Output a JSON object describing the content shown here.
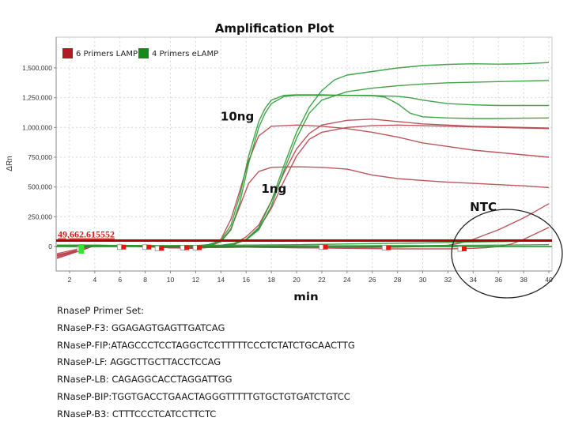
{
  "chart_data": {
    "type": "line",
    "title": "Amplification Plot",
    "xlabel": "min",
    "ylabel": "ΔRn",
    "xlim": [
      1,
      40
    ],
    "ylim": [
      -200000,
      1650000
    ],
    "x_ticks": [
      2,
      4,
      6,
      8,
      10,
      12,
      14,
      16,
      18,
      20,
      22,
      24,
      26,
      28,
      30,
      32,
      34,
      36,
      38,
      40
    ],
    "x_tick_labels": [
      "2",
      "4",
      "6",
      "8",
      "10",
      "12",
      "14",
      "16",
      "18",
      "20",
      "22",
      "24",
      "26",
      "28",
      "30",
      "32",
      "34",
      "36",
      "38",
      "40"
    ],
    "y_ticks": [
      0,
      250000,
      500000,
      750000,
      1000000,
      1250000,
      1500000
    ],
    "y_tick_labels": [
      "0",
      "250,000",
      "500,000",
      "750,000",
      "1,000,000",
      "1,250,000",
      "1,500,000"
    ],
    "grid": true,
    "legend": {
      "placement": "top-left",
      "entries": [
        {
          "label": "6 Primers LAMP",
          "color": "#b01c24"
        },
        {
          "label": "4 Primers eLAMP",
          "color": "#138a1a"
        }
      ]
    },
    "threshold": {
      "value": 49662.615552,
      "label": "49,662.615552",
      "color": "#b00000"
    },
    "annotations": [
      {
        "text": "10ng",
        "x": 15.3,
        "y": 1060000
      },
      {
        "text": "1ng",
        "x": 18.2,
        "y": 450000
      },
      {
        "text": "NTC",
        "x": 34.8,
        "y": 300000
      }
    ],
    "series": [
      {
        "name": "6 Primers LAMP 10ng a",
        "group": "6 Primers LAMP",
        "color": "#b8424a",
        "x": [
          1,
          3,
          4,
          6,
          8,
          10,
          12,
          13,
          14,
          14.8,
          15.5,
          16.2,
          17,
          18,
          20,
          22,
          24,
          26,
          28,
          30,
          32,
          34,
          36,
          38,
          40
        ],
        "y": [
          -70000,
          -30000,
          10000,
          5000,
          0,
          -10000,
          -15000,
          0,
          60000,
          230000,
          470000,
          720000,
          930000,
          1010000,
          1020000,
          1010000,
          990000,
          960000,
          920000,
          870000,
          840000,
          810000,
          790000,
          770000,
          750000
        ]
      },
      {
        "name": "6 Primers LAMP 10ng b",
        "group": "6 Primers LAMP",
        "color": "#b8424a",
        "x": [
          1,
          3,
          4,
          6,
          8,
          10,
          12,
          13,
          14,
          14.8,
          15.5,
          16.2,
          17,
          18,
          20,
          22,
          24,
          26,
          28,
          30,
          32,
          34,
          36,
          38,
          40
        ],
        "y": [
          -90000,
          -30000,
          10000,
          5000,
          0,
          -10000,
          -15000,
          0,
          40000,
          150000,
          340000,
          530000,
          630000,
          665000,
          670000,
          665000,
          650000,
          600000,
          570000,
          555000,
          540000,
          530000,
          520000,
          510000,
          495000
        ]
      },
      {
        "name": "6 Primers LAMP 1ng a",
        "group": "6 Primers LAMP",
        "color": "#b8424a",
        "x": [
          1,
          3,
          4,
          6,
          8,
          10,
          12,
          14,
          15,
          16,
          17,
          18,
          19,
          20,
          21,
          22,
          24,
          26,
          28,
          30,
          32,
          34,
          36,
          38,
          40
        ],
        "y": [
          -80000,
          -30000,
          10000,
          5000,
          0,
          -10000,
          -15000,
          0,
          20000,
          80000,
          180000,
          380000,
          620000,
          820000,
          950000,
          1020000,
          1060000,
          1070000,
          1050000,
          1030000,
          1020000,
          1010000,
          1005000,
          1000000,
          995000
        ]
      },
      {
        "name": "6 Primers LAMP 1ng b",
        "group": "6 Primers LAMP",
        "color": "#b8424a",
        "x": [
          1,
          3,
          4,
          6,
          8,
          10,
          12,
          14,
          15,
          16,
          17,
          18,
          19,
          20,
          21,
          22,
          24,
          26,
          28,
          30,
          32,
          34,
          36,
          38,
          40
        ],
        "y": [
          -100000,
          -30000,
          10000,
          5000,
          0,
          -10000,
          -15000,
          0,
          15000,
          60000,
          150000,
          320000,
          550000,
          760000,
          900000,
          960000,
          1000000,
          1015000,
          1020000,
          1015000,
          1010000,
          1005000,
          1000000,
          995000,
          990000
        ]
      },
      {
        "name": "6 Primers LAMP NTC a",
        "group": "6 Primers LAMP",
        "color": "#b8424a",
        "x": [
          1,
          4,
          8,
          12,
          16,
          20,
          24,
          28,
          30,
          32,
          33,
          34,
          35,
          36,
          37,
          38,
          39,
          40
        ],
        "y": [
          -60000,
          10000,
          0,
          -10000,
          -5000,
          -10000,
          -10000,
          -5000,
          0,
          10000,
          30000,
          60000,
          100000,
          140000,
          190000,
          240000,
          300000,
          360000
        ]
      },
      {
        "name": "6 Primers LAMP NTC b",
        "group": "6 Primers LAMP",
        "color": "#b8424a",
        "x": [
          1,
          4,
          8,
          12,
          16,
          20,
          24,
          28,
          32,
          34,
          35,
          36,
          37,
          38,
          39,
          40
        ],
        "y": [
          -75000,
          10000,
          0,
          -10000,
          -5000,
          -10000,
          -15000,
          -20000,
          -20000,
          -15000,
          -10000,
          0,
          20000,
          60000,
          110000,
          160000
        ]
      },
      {
        "name": "4 Primers eLAMP 10ng a",
        "group": "4 Primers eLAMP",
        "color": "#2e9a36",
        "x": [
          1,
          3,
          4,
          6,
          8,
          10,
          12,
          13,
          14,
          14.8,
          15.5,
          16.2,
          17,
          17.5,
          18,
          19,
          20,
          22,
          24,
          26,
          27,
          28,
          29,
          30,
          32,
          34,
          36,
          38,
          40
        ],
        "y": [
          10000,
          10000,
          10000,
          8000,
          5000,
          5000,
          5000,
          15000,
          50000,
          180000,
          430000,
          760000,
          1050000,
          1160000,
          1230000,
          1270000,
          1275000,
          1275000,
          1270000,
          1268000,
          1255000,
          1200000,
          1120000,
          1090000,
          1080000,
          1075000,
          1075000,
          1078000,
          1080000
        ]
      },
      {
        "name": "4 Primers eLAMP 10ng b",
        "group": "4 Primers eLAMP",
        "color": "#2e9a36",
        "x": [
          1,
          3,
          4,
          6,
          8,
          10,
          12,
          13,
          14,
          14.8,
          15.5,
          16.2,
          17,
          17.5,
          18,
          19,
          20,
          22,
          24,
          26,
          28,
          29,
          30,
          32,
          34,
          36,
          38,
          40
        ],
        "y": [
          10000,
          10000,
          10000,
          8000,
          5000,
          5000,
          5000,
          15000,
          40000,
          140000,
          370000,
          700000,
          1000000,
          1120000,
          1200000,
          1260000,
          1270000,
          1270000,
          1270000,
          1268000,
          1262000,
          1250000,
          1230000,
          1200000,
          1190000,
          1185000,
          1185000,
          1185000
        ]
      },
      {
        "name": "4 Primers eLAMP 1ng a",
        "group": "4 Primers eLAMP",
        "color": "#2e9a36",
        "x": [
          1,
          3,
          4,
          6,
          8,
          10,
          12,
          14,
          15,
          16,
          17,
          18,
          19,
          20,
          21,
          22,
          23,
          24,
          26,
          28,
          30,
          32,
          34,
          36,
          38,
          40
        ],
        "y": [
          10000,
          10000,
          10000,
          8000,
          5000,
          5000,
          5000,
          10000,
          25000,
          60000,
          160000,
          380000,
          680000,
          960000,
          1170000,
          1310000,
          1400000,
          1440000,
          1470000,
          1500000,
          1520000,
          1530000,
          1535000,
          1532000,
          1535000,
          1545000
        ]
      },
      {
        "name": "4 Primers eLAMP 1ng b",
        "group": "4 Primers eLAMP",
        "color": "#2e9a36",
        "x": [
          1,
          3,
          4,
          6,
          8,
          10,
          12,
          14,
          15,
          16,
          17,
          18,
          19,
          20,
          21,
          22,
          24,
          26,
          28,
          30,
          32,
          34,
          36,
          38,
          40
        ],
        "y": [
          10000,
          10000,
          10000,
          8000,
          5000,
          5000,
          5000,
          10000,
          20000,
          55000,
          140000,
          340000,
          640000,
          910000,
          1120000,
          1230000,
          1300000,
          1330000,
          1350000,
          1365000,
          1375000,
          1380000,
          1385000,
          1390000,
          1395000
        ]
      },
      {
        "name": "4 Primers eLAMP NTC a",
        "group": "4 Primers eLAMP",
        "color": "#2e9a36",
        "x": [
          1,
          10,
          20,
          30,
          34,
          40
        ],
        "y": [
          10000,
          8000,
          15000,
          30000,
          38000,
          48000
        ]
      },
      {
        "name": "4 Primers eLAMP NTC b",
        "group": "4 Primers eLAMP",
        "color": "#2e9a36",
        "x": [
          1,
          10,
          20,
          30,
          34,
          40
        ],
        "y": [
          5000,
          3000,
          5000,
          8000,
          10000,
          15000
        ]
      }
    ],
    "markers": [
      {
        "x": 2.9,
        "y": -20000,
        "color": "#2ee82e"
      },
      {
        "x": 6.1,
        "y": -5000,
        "color": "#ee1111"
      },
      {
        "x": 8.1,
        "y": -5000,
        "color": "#ee1111"
      },
      {
        "x": 9.1,
        "y": -15000,
        "color": "#ee1111"
      },
      {
        "x": 11.1,
        "y": -10000,
        "color": "#ee1111"
      },
      {
        "x": 12.1,
        "y": -10000,
        "color": "#ee1111"
      },
      {
        "x": 22.1,
        "y": -5000,
        "color": "#ee1111"
      },
      {
        "x": 27.1,
        "y": -10000,
        "color": "#ee1111"
      },
      {
        "x": 33.1,
        "y": -20000,
        "color": "#ee1111"
      }
    ]
  },
  "primers": {
    "heading": "RnaseP Primer Set:",
    "items": [
      "RNaseP-F3: GGAGAGTGAGTTGATCAG",
      "RNaseP-FIP:ATAGCCCTCCTAGGCTCCTTTTTCCCTCTATCTGCAACTTG",
      "RNaseP-LF: AGGCTTGCTTACCTCCAG",
      "RNaseP-LB: CAGAGGCACCTAGGATTGG",
      "RNaseP-BIP:TGGTGACCTGAACTAGGGTTTTTGTGCTGTGATCTGTCC",
      "RNaseP-B3: CTTTCCCTCATCCTTCTC"
    ]
  }
}
